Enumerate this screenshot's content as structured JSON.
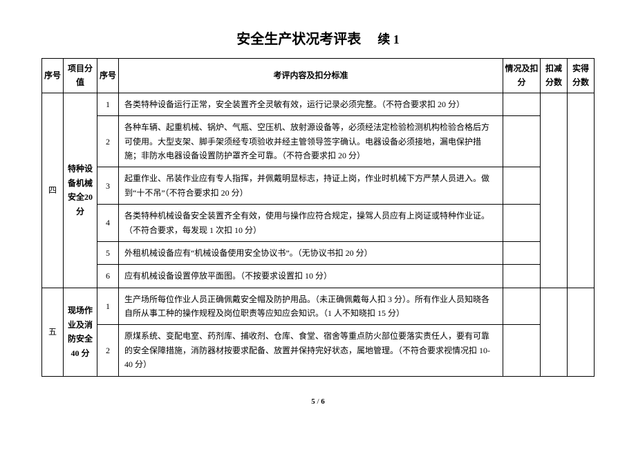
{
  "title": "安全生产状况考评表",
  "continuation": "续 1",
  "headers": {
    "seq": "序号",
    "item": "项目分值",
    "subseq": "序号",
    "content": "考评内容及扣分标准",
    "status": "情况及扣分",
    "deduct": "扣减分数",
    "actual": "实得分数"
  },
  "sections": [
    {
      "seq": "四",
      "item": "特种设备机械安全20 分",
      "rows": [
        {
          "n": "1",
          "text": "各类特种设备运行正常，安全装置齐全灵敏有效，运行记录必须完整。（不符合要求扣 20 分）"
        },
        {
          "n": "2",
          "text": "各种车辆、起重机械、锅炉、气瓶、空压机、放射源设备等，必须经法定检验检测机构检验合格后方可使用。大型支架、脚手架须经专项验收并经主管领导签字确认。电器设备必须接地，漏电保护措施；非防水电器设备设置防护罩齐全可靠。（不符合要求扣 20 分）"
        },
        {
          "n": "3",
          "text": "起重作业、吊装作业应有专人指挥，并佩戴明显标志，持证上岗，作业时机械下方严禁人员进入。做到“十不吊”（不符合要求扣 20 分）"
        },
        {
          "n": "4",
          "text": "各类特种机械设备安全装置齐全有效，使用与操作应符合规定，操驾人员应有上岗证或特种作业证。（不符合要求，每发现 1 次扣 10 分）"
        },
        {
          "n": "5",
          "text": "外租机械设备应有“机械设备使用安全协议书”。（无协议书扣 20 分）"
        },
        {
          "n": "6",
          "text": "应有机械设备设置停放平面图。（不按要求设置扣 10 分）"
        }
      ]
    },
    {
      "seq": "五",
      "item": "现场作业及消防安全40 分",
      "rows": [
        {
          "n": "1",
          "text": "生产场所每位作业人员正确佩戴安全帽及防护用品。（未正确佩戴每人扣 3 分）。所有作业人员知晓各自所从事工种的操作规程及岗位职责等应知应会知识。（1 人不知晓扣 15 分）"
        },
        {
          "n": "2",
          "text": "原煤系统、变配电室、药剂库、捕收剂、仓库、食堂、宿舍等重点防火部位要落实责任人，要有可靠的安全保障措施，消防器材按要求配备、放置并保持完好状态，属地管理。（不符合要求视情况扣 10-40 分）"
        }
      ]
    }
  ],
  "pageFooter": {
    "current": "5",
    "sep": " / ",
    "total": "6"
  }
}
